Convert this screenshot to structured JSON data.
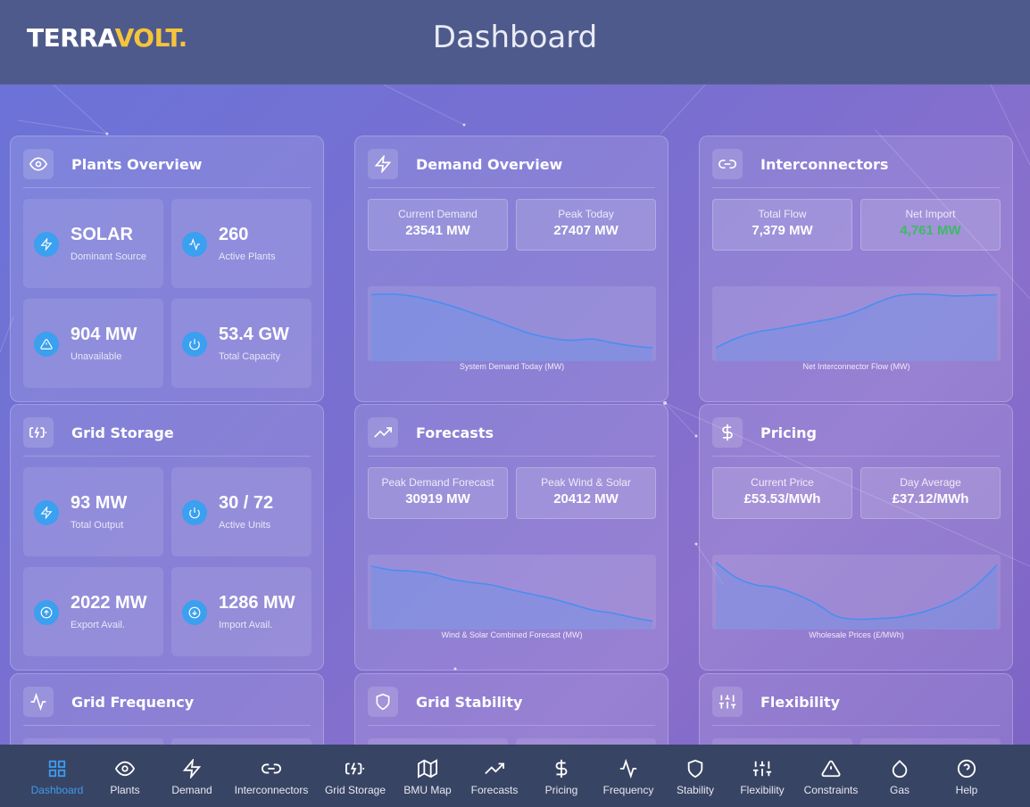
{
  "header": {
    "logo_part1": "TERRA",
    "logo_part2": "VOLT.",
    "title": "Dashboard"
  },
  "colors": {
    "accent": "#3d9bef",
    "logo_yellow": "#f5c43a",
    "positive": "#3dbb62",
    "header_bg": "#4f5a8c",
    "nav_bg": "#384463"
  },
  "plants_overview": {
    "title": "Plants Overview",
    "icon": "eye-icon",
    "tiles": [
      {
        "value": "SOLAR",
        "label": "Dominant Source",
        "icon": "bolt-icon"
      },
      {
        "value": "260",
        "label": "Active Plants",
        "icon": "pulse-icon"
      },
      {
        "value": "904 MW",
        "label": "Unavailable",
        "icon": "warning-icon"
      },
      {
        "value": "53.4 GW",
        "label": "Total Capacity",
        "icon": "power-icon"
      }
    ]
  },
  "demand_overview": {
    "title": "Demand Overview",
    "icon": "bolt-icon",
    "stats": [
      {
        "label": "Current Demand",
        "value": "23541 MW"
      },
      {
        "label": "Peak Today",
        "value": "27407 MW"
      }
    ],
    "chart_caption": "System Demand Today (MW)"
  },
  "interconnectors": {
    "title": "Interconnectors",
    "icon": "link-icon",
    "stats": [
      {
        "label": "Total Flow",
        "value": "7,379 MW"
      },
      {
        "label": "Net Import",
        "value": "4,761 MW"
      }
    ],
    "chart_caption": "Net Interconnector Flow (MW)"
  },
  "grid_storage": {
    "title": "Grid Storage",
    "icon": "battery-charging-icon",
    "tiles": [
      {
        "value": "93 MW",
        "label": "Total Output",
        "icon": "bolt-icon"
      },
      {
        "value": "30 / 72",
        "label": "Active Units",
        "icon": "power-icon"
      },
      {
        "value": "2022 MW",
        "label": "Export Avail.",
        "icon": "arrow-up-circle-icon"
      },
      {
        "value": "1286 MW",
        "label": "Import Avail.",
        "icon": "arrow-down-circle-icon"
      }
    ]
  },
  "forecasts": {
    "title": "Forecasts",
    "icon": "trending-up-icon",
    "stats": [
      {
        "label": "Peak Demand Forecast",
        "value": "30919 MW"
      },
      {
        "label": "Peak Wind & Solar",
        "value": "20412 MW"
      }
    ],
    "chart_caption": "Wind & Solar Combined Forecast (MW)"
  },
  "pricing": {
    "title": "Pricing",
    "icon": "dollar-icon",
    "stats": [
      {
        "label": "Current Price",
        "value": "£53.53/MWh"
      },
      {
        "label": "Day Average",
        "value": "£37.12/MWh"
      }
    ],
    "chart_caption": "Wholesale Prices (£/MWh)"
  },
  "grid_frequency": {
    "title": "Grid Frequency",
    "icon": "pulse-icon"
  },
  "grid_stability": {
    "title": "Grid Stability",
    "icon": "shield-icon"
  },
  "flexibility": {
    "title": "Flexibility",
    "icon": "sliders-icon"
  },
  "chart_data": [
    {
      "type": "area",
      "title": "System Demand Today (MW)",
      "series": [
        {
          "values": [
            0.95,
            0.96,
            0.93,
            0.86,
            0.77,
            0.66,
            0.55,
            0.43,
            0.32,
            0.25,
            0.22,
            0.24,
            0.18,
            0.13,
            0.1
          ]
        }
      ]
    },
    {
      "type": "area",
      "title": "Net Interconnector Flow (MW)",
      "series": [
        {
          "values": [
            0.1,
            0.25,
            0.35,
            0.4,
            0.46,
            0.52,
            0.58,
            0.68,
            0.82,
            0.93,
            0.96,
            0.95,
            0.93,
            0.94,
            0.95
          ]
        }
      ]
    },
    {
      "type": "area",
      "title": "Wind & Solar Combined Forecast (MW)",
      "series": [
        {
          "values": [
            0.9,
            0.84,
            0.82,
            0.78,
            0.69,
            0.64,
            0.6,
            0.52,
            0.45,
            0.38,
            0.29,
            0.2,
            0.15,
            0.08,
            0.02
          ]
        }
      ]
    },
    {
      "type": "area",
      "title": "Wholesale Prices (£/MWh)",
      "series": [
        {
          "values": [
            0.96,
            0.72,
            0.6,
            0.56,
            0.45,
            0.3,
            0.1,
            0.05,
            0.06,
            0.08,
            0.14,
            0.24,
            0.38,
            0.6,
            0.92
          ]
        }
      ]
    }
  ],
  "nav": [
    {
      "label": "Dashboard",
      "icon": "grid-icon",
      "active": true
    },
    {
      "label": "Plants",
      "icon": "eye-icon"
    },
    {
      "label": "Demand",
      "icon": "bolt-icon"
    },
    {
      "label": "Interconnectors",
      "icon": "link-icon"
    },
    {
      "label": "Grid Storage",
      "icon": "battery-charging-icon"
    },
    {
      "label": "BMU Map",
      "icon": "map-icon"
    },
    {
      "label": "Forecasts",
      "icon": "trending-up-icon"
    },
    {
      "label": "Pricing",
      "icon": "dollar-icon"
    },
    {
      "label": "Frequency",
      "icon": "pulse-icon"
    },
    {
      "label": "Stability",
      "icon": "shield-icon"
    },
    {
      "label": "Flexibility",
      "icon": "sliders-icon"
    },
    {
      "label": "Constraints",
      "icon": "warning-icon"
    },
    {
      "label": "Gas",
      "icon": "droplet-icon"
    },
    {
      "label": "Help",
      "icon": "help-circle-icon"
    }
  ]
}
